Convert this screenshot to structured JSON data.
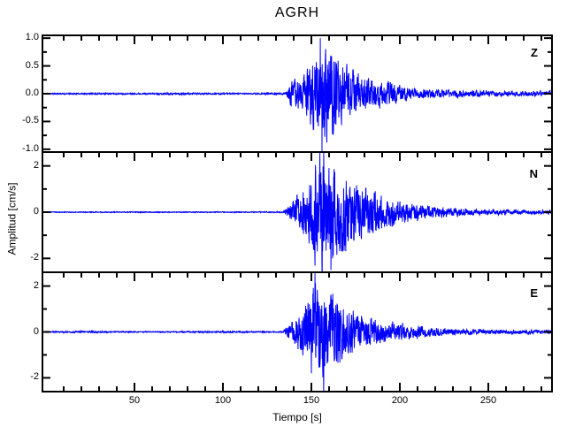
{
  "colors": {
    "trace": "#0000FF",
    "axis": "#000000",
    "background": "#FFFFFF"
  },
  "chart_data": {
    "type": "line",
    "title": "AGRH",
    "xlabel": "Tiempo [s]",
    "ylabel": "Amplitud [cm/s]",
    "grid": false,
    "legend": false,
    "x_range": [
      -2,
      286
    ],
    "x_major_ticks": [
      50,
      100,
      150,
      200,
      250
    ],
    "x_major_tick_labels": [
      "50",
      "100",
      "150",
      "200",
      "250"
    ],
    "x_minor_step": 10,
    "event_onset_s": 137,
    "peak_window_s": [
      150,
      168
    ],
    "signal_end_s": 286,
    "panels": [
      {
        "label": "Z",
        "ylim": [
          -1.05,
          1.05
        ],
        "ytick_values": [
          1.0,
          0.5,
          0.0,
          -0.5,
          -1.0
        ],
        "ytick_labels": [
          "1.0",
          "0.5",
          "0.0",
          "-0.5",
          "-1.0"
        ],
        "y_minor_ticks": [
          0.75,
          0.25,
          -0.25,
          -0.75
        ],
        "noise_level_cm_s": 0.012,
        "peak_amplitude_cm_s": 1.0,
        "min_amplitude_cm_s": -1.05,
        "envelope": [
          [
            0,
            0.012
          ],
          [
            30,
            0.014
          ],
          [
            60,
            0.012
          ],
          [
            75,
            0.022
          ],
          [
            85,
            0.013
          ],
          [
            110,
            0.012
          ],
          [
            132,
            0.014
          ],
          [
            136,
            0.05
          ],
          [
            138,
            0.22
          ],
          [
            143,
            0.28
          ],
          [
            148,
            0.45
          ],
          [
            152,
            0.75
          ],
          [
            155,
            1.0
          ],
          [
            158,
            0.85
          ],
          [
            162,
            0.9
          ],
          [
            166,
            0.55
          ],
          [
            172,
            0.45
          ],
          [
            180,
            0.33
          ],
          [
            188,
            0.26
          ],
          [
            196,
            0.2
          ],
          [
            205,
            0.12
          ],
          [
            215,
            0.085
          ],
          [
            235,
            0.065
          ],
          [
            260,
            0.055
          ],
          [
            286,
            0.045
          ]
        ],
        "spikes": [
          [
            155,
            1.0
          ],
          [
            156,
            -1.05
          ]
        ],
        "seed": 11
      },
      {
        "label": "N",
        "ylim": [
          -2.6,
          2.6
        ],
        "ytick_values": [
          2,
          0,
          -2
        ],
        "ytick_labels": [
          "2",
          "0",
          "-2"
        ],
        "y_minor_ticks": [
          1,
          -1
        ],
        "noise_level_cm_s": 0.02,
        "peak_amplitude_cm_s": 2.6,
        "min_amplitude_cm_s": -2.5,
        "envelope": [
          [
            0,
            0.02
          ],
          [
            40,
            0.022
          ],
          [
            80,
            0.02
          ],
          [
            120,
            0.022
          ],
          [
            134,
            0.025
          ],
          [
            137,
            0.3
          ],
          [
            140,
            0.55
          ],
          [
            144,
            0.9
          ],
          [
            148,
            1.4
          ],
          [
            152,
            2.3
          ],
          [
            156,
            2.55
          ],
          [
            160,
            2.1
          ],
          [
            163,
            2.4
          ],
          [
            167,
            1.9
          ],
          [
            172,
            1.55
          ],
          [
            178,
            1.25
          ],
          [
            185,
            1.0
          ],
          [
            192,
            0.7
          ],
          [
            200,
            0.5
          ],
          [
            208,
            0.38
          ],
          [
            218,
            0.27
          ],
          [
            230,
            0.18
          ],
          [
            245,
            0.13
          ],
          [
            265,
            0.1
          ],
          [
            286,
            0.08
          ]
        ],
        "spikes": [
          [
            157,
            2.6
          ],
          [
            161,
            -2.5
          ]
        ],
        "seed": 23
      },
      {
        "label": "E",
        "ylim": [
          -2.6,
          2.6
        ],
        "ytick_values": [
          2,
          0,
          -2
        ],
        "ytick_labels": [
          "2",
          "0",
          "-2"
        ],
        "y_minor_ticks": [
          1,
          -1
        ],
        "noise_level_cm_s": 0.025,
        "peak_amplitude_cm_s": 2.55,
        "min_amplitude_cm_s": -2.6,
        "envelope": [
          [
            0,
            0.025
          ],
          [
            20,
            0.045
          ],
          [
            35,
            0.03
          ],
          [
            60,
            0.025
          ],
          [
            100,
            0.035
          ],
          [
            125,
            0.03
          ],
          [
            134,
            0.03
          ],
          [
            137,
            0.35
          ],
          [
            140,
            0.6
          ],
          [
            144,
            1.1
          ],
          [
            148,
            1.9
          ],
          [
            151,
            2.5
          ],
          [
            155,
            2.3
          ],
          [
            159,
            1.9
          ],
          [
            163,
            1.75
          ],
          [
            167,
            1.5
          ],
          [
            171,
            1.2
          ],
          [
            176,
            0.85
          ],
          [
            182,
            0.65
          ],
          [
            190,
            0.5
          ],
          [
            198,
            0.45
          ],
          [
            206,
            0.3
          ],
          [
            215,
            0.22
          ],
          [
            228,
            0.15
          ],
          [
            250,
            0.12
          ],
          [
            270,
            0.1
          ],
          [
            286,
            0.08
          ]
        ],
        "spikes": [
          [
            152,
            2.55
          ],
          [
            157,
            -2.6
          ]
        ],
        "seed": 37
      }
    ]
  }
}
